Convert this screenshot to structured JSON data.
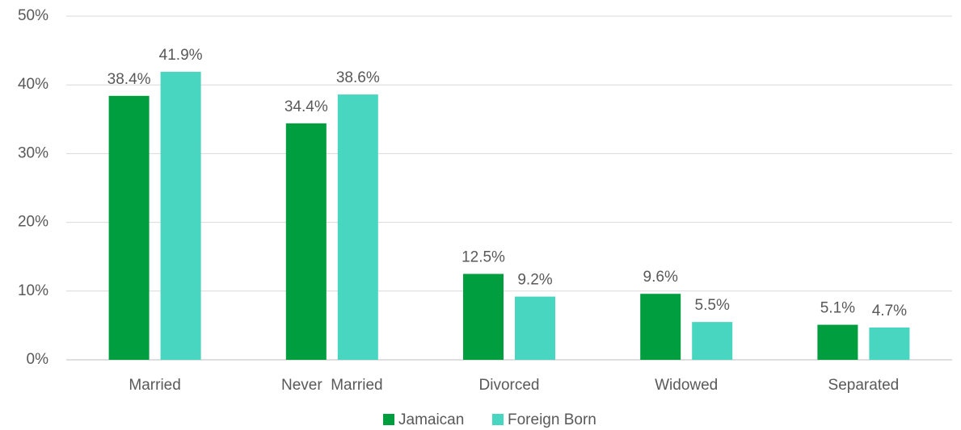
{
  "chart_data": {
    "type": "bar",
    "categories": [
      "Married",
      "Never  Married",
      "Divorced",
      "Widowed",
      "Separated"
    ],
    "series": [
      {
        "name": "Jamaican",
        "color": "#009e3f",
        "values": [
          38.4,
          34.4,
          12.5,
          9.6,
          5.1
        ],
        "value_labels": [
          "38.4%",
          "34.4%",
          "12.5%",
          "9.6%",
          "5.1%"
        ]
      },
      {
        "name": "Foreign Born",
        "color": "#48d6c0",
        "values": [
          41.9,
          38.6,
          9.2,
          5.5,
          4.7
        ],
        "value_labels": [
          "41.9%",
          "38.6%",
          "9.2%",
          "5.5%",
          "4.7%"
        ]
      }
    ],
    "ylim": [
      0,
      50
    ],
    "yticks": [
      {
        "value": 0,
        "label": "0%"
      },
      {
        "value": 10,
        "label": "10%"
      },
      {
        "value": 20,
        "label": "20%"
      },
      {
        "value": 30,
        "label": "30%"
      },
      {
        "value": 40,
        "label": "40%"
      },
      {
        "value": 50,
        "label": "50%"
      }
    ],
    "grid": true,
    "legend": "bottom"
  }
}
